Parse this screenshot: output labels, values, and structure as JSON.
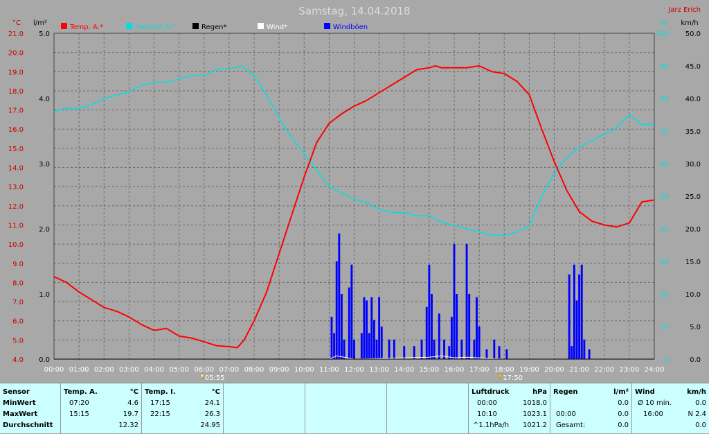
{
  "title": "Samstag, 14.04.2018",
  "author": "Jarz Erich",
  "colors": {
    "temp": "#ff0000",
    "humidity": "#00e0e0",
    "rain": "#000000",
    "wind": "#ffffff",
    "gusts": "#0000ff"
  },
  "axes": {
    "left_temp": {
      "unit": "°C",
      "ticks": [
        "21.0",
        "20.0",
        "19.0",
        "18.0",
        "17.0",
        "16.0",
        "15.0",
        "14.0",
        "13.0",
        "12.0",
        "11.0",
        "10.0",
        "9.0",
        "8.0",
        "7.0",
        "6.0",
        "5.0",
        "4.0"
      ]
    },
    "left_rain": {
      "unit": "l/m²",
      "ticks": [
        "5.0",
        "4.0",
        "3.0",
        "2.0",
        "1.0",
        "0.0"
      ]
    },
    "right_humidity": {
      "unit": "%",
      "ticks": [
        "100",
        "90",
        "80",
        "70",
        "60",
        "50",
        "40",
        "30",
        "20",
        "10",
        "0"
      ]
    },
    "right_wind": {
      "unit": "km/h",
      "ticks": [
        "50.0",
        "45.0",
        "40.0",
        "35.0",
        "30.0",
        "25.0",
        "20.0",
        "15.0",
        "10.0",
        "5.0",
        "0.0"
      ]
    },
    "x": {
      "ticks": [
        "00:00",
        "01:00",
        "02:00",
        "03:00",
        "04:00",
        "05:00",
        "06:00",
        "07:00",
        "08:00",
        "09:00",
        "10:00",
        "11:00",
        "12:00",
        "13:00",
        "14:00",
        "15:00",
        "16:00",
        "17:00",
        "18:00",
        "19:00",
        "20:00",
        "21:00",
        "22:00",
        "23:00",
        "24:00"
      ]
    }
  },
  "sunrise": "05:55",
  "sunset": "17:50",
  "legend": [
    {
      "label": "Temp. A.*",
      "color": "#ff0000"
    },
    {
      "label": "Feuchte A.*",
      "color": "#00e0e0"
    },
    {
      "label": "Regen*",
      "color": "#000000"
    },
    {
      "label": "Wind*",
      "color": "#ffffff"
    },
    {
      "label": "Windböen",
      "color": "#0000ff"
    }
  ],
  "chart_data": {
    "type": "line",
    "x_unit": "hour",
    "ylim_temp": [
      4,
      21
    ],
    "ylim_rain": [
      0,
      5
    ],
    "ylim_humidity": [
      0,
      100
    ],
    "ylim_wind": [
      0,
      50
    ],
    "grid": true,
    "series": [
      {
        "name": "Temp. A.*",
        "axis": "temp",
        "points": [
          [
            0,
            8.3
          ],
          [
            0.5,
            8.0
          ],
          [
            1,
            7.5
          ],
          [
            1.5,
            7.1
          ],
          [
            2,
            6.7
          ],
          [
            2.5,
            6.5
          ],
          [
            3,
            6.2
          ],
          [
            3.5,
            5.8
          ],
          [
            4,
            5.5
          ],
          [
            4.5,
            5.6
          ],
          [
            5,
            5.2
          ],
          [
            5.5,
            5.1
          ],
          [
            6,
            4.9
          ],
          [
            6.5,
            4.7
          ],
          [
            7,
            4.65
          ],
          [
            7.33,
            4.6
          ],
          [
            7.6,
            5.0
          ],
          [
            8,
            6.0
          ],
          [
            8.5,
            7.5
          ],
          [
            9,
            9.5
          ],
          [
            9.5,
            11.5
          ],
          [
            10,
            13.5
          ],
          [
            10.5,
            15.3
          ],
          [
            11,
            16.3
          ],
          [
            11.5,
            16.8
          ],
          [
            12,
            17.2
          ],
          [
            12.5,
            17.5
          ],
          [
            13,
            17.9
          ],
          [
            13.5,
            18.3
          ],
          [
            14,
            18.7
          ],
          [
            14.5,
            19.1
          ],
          [
            15,
            19.2
          ],
          [
            15.25,
            19.3
          ],
          [
            15.5,
            19.2
          ],
          [
            16,
            19.2
          ],
          [
            16.5,
            19.2
          ],
          [
            17,
            19.3
          ],
          [
            17.5,
            19.0
          ],
          [
            18,
            18.9
          ],
          [
            18.5,
            18.5
          ],
          [
            19,
            17.8
          ],
          [
            19.5,
            16.0
          ],
          [
            20,
            14.3
          ],
          [
            20.5,
            12.8
          ],
          [
            21,
            11.7
          ],
          [
            21.5,
            11.2
          ],
          [
            22,
            11.0
          ],
          [
            22.5,
            10.9
          ],
          [
            23,
            11.1
          ],
          [
            23.5,
            12.2
          ],
          [
            24,
            12.3
          ]
        ]
      },
      {
        "name": "Feuchte A.*",
        "axis": "humidity",
        "points": [
          [
            0,
            76
          ],
          [
            0.5,
            77
          ],
          [
            1,
            77
          ],
          [
            1.5,
            78
          ],
          [
            2,
            80
          ],
          [
            2.5,
            81
          ],
          [
            3,
            82
          ],
          [
            3.5,
            84
          ],
          [
            4,
            85
          ],
          [
            4.5,
            85
          ],
          [
            5,
            86
          ],
          [
            5.5,
            87
          ],
          [
            6,
            87
          ],
          [
            6.5,
            89
          ],
          [
            7,
            89
          ],
          [
            7.5,
            90
          ],
          [
            8,
            87
          ],
          [
            8.5,
            81
          ],
          [
            9,
            74
          ],
          [
            9.5,
            68
          ],
          [
            10,
            63
          ],
          [
            10.5,
            58
          ],
          [
            11,
            53
          ],
          [
            11.5,
            51
          ],
          [
            12,
            49
          ],
          [
            12.5,
            48
          ],
          [
            13,
            46
          ],
          [
            13.5,
            45
          ],
          [
            14,
            45
          ],
          [
            14.5,
            44
          ],
          [
            15,
            44
          ],
          [
            15.5,
            42
          ],
          [
            16,
            41
          ],
          [
            16.5,
            40
          ],
          [
            17,
            39
          ],
          [
            17.5,
            38
          ],
          [
            18,
            38
          ],
          [
            18.5,
            39
          ],
          [
            19,
            41
          ],
          [
            19.5,
            50
          ],
          [
            20,
            57
          ],
          [
            20.5,
            62
          ],
          [
            21,
            65
          ],
          [
            21.5,
            67
          ],
          [
            22,
            69
          ],
          [
            22.5,
            71
          ],
          [
            23,
            75
          ],
          [
            23.5,
            72
          ],
          [
            24,
            72
          ]
        ]
      },
      {
        "name": "Regen*",
        "axis": "rain",
        "points": [
          [
            0,
            0
          ],
          [
            24,
            0
          ]
        ]
      },
      {
        "name": "Wind*",
        "axis": "wind",
        "points": [
          [
            0,
            0
          ],
          [
            11,
            0
          ],
          [
            11.3,
            0.5
          ],
          [
            11.6,
            0.3
          ],
          [
            12,
            0
          ],
          [
            15,
            0.3
          ],
          [
            15.5,
            0.5
          ],
          [
            16,
            0.2
          ],
          [
            16.5,
            0.3
          ],
          [
            18,
            0
          ],
          [
            24,
            0
          ]
        ]
      },
      {
        "name": "Windböen",
        "axis": "wind",
        "bars": [
          [
            11.1,
            6.5
          ],
          [
            11.2,
            4.0
          ],
          [
            11.3,
            15.0
          ],
          [
            11.4,
            19.3
          ],
          [
            11.5,
            10.0
          ],
          [
            11.6,
            3.0
          ],
          [
            11.8,
            11.0
          ],
          [
            11.9,
            14.5
          ],
          [
            12.0,
            3.0
          ],
          [
            12.3,
            4.0
          ],
          [
            12.4,
            9.5
          ],
          [
            12.5,
            9.0
          ],
          [
            12.6,
            4.0
          ],
          [
            12.7,
            9.5
          ],
          [
            12.8,
            6.0
          ],
          [
            12.9,
            3.0
          ],
          [
            13.0,
            9.5
          ],
          [
            13.1,
            5.0
          ],
          [
            13.4,
            3.0
          ],
          [
            13.6,
            3.0
          ],
          [
            14.0,
            2.0
          ],
          [
            14.4,
            2.0
          ],
          [
            14.7,
            3.0
          ],
          [
            14.9,
            8.0
          ],
          [
            15.0,
            14.5
          ],
          [
            15.1,
            10.0
          ],
          [
            15.2,
            3.0
          ],
          [
            15.4,
            7.0
          ],
          [
            15.6,
            3.0
          ],
          [
            15.8,
            2.0
          ],
          [
            15.9,
            6.5
          ],
          [
            16.0,
            17.7
          ],
          [
            16.1,
            10.0
          ],
          [
            16.3,
            3.0
          ],
          [
            16.5,
            17.7
          ],
          [
            16.6,
            10.0
          ],
          [
            16.8,
            3.0
          ],
          [
            16.9,
            9.5
          ],
          [
            17.0,
            5.0
          ],
          [
            17.3,
            1.5
          ],
          [
            17.6,
            3.0
          ],
          [
            17.8,
            2.0
          ],
          [
            18.1,
            1.5
          ],
          [
            20.6,
            13.0
          ],
          [
            20.7,
            2.0
          ],
          [
            20.8,
            14.5
          ],
          [
            20.9,
            9.0
          ],
          [
            21.0,
            13.0
          ],
          [
            21.1,
            14.5
          ],
          [
            21.2,
            3.0
          ],
          [
            21.4,
            1.5
          ]
        ]
      }
    ]
  },
  "table": {
    "sensor": {
      "header": "Sensor",
      "rows": [
        "MinWert",
        "MaxWert",
        "Durchschnitt"
      ]
    },
    "temp_a": {
      "header": "Temp. A.",
      "unit": "°C",
      "times": [
        "07:20",
        "15:15",
        ""
      ],
      "values": [
        "4.6",
        "19.7",
        "12.32"
      ]
    },
    "temp_i": {
      "header": "Temp. I.",
      "unit": "°C",
      "times": [
        "17:15",
        "22:15",
        ""
      ],
      "values": [
        "24.1",
        "26.3",
        "24.95"
      ]
    },
    "pressure": {
      "header": "Luftdruck",
      "unit": "hPa",
      "times": [
        "00:00",
        "10:10",
        "^1.1hPa/h"
      ],
      "values": [
        "1018.0",
        "1023.1",
        "1021.2"
      ]
    },
    "rain": {
      "header": "Regen",
      "unit": "l/m²",
      "times": [
        "00:00",
        "",
        "Gesamt:"
      ],
      "values": [
        "0.0",
        "0.0",
        "0.0"
      ]
    },
    "wind": {
      "header": "Wind",
      "unit": "km/h",
      "labels": [
        "Ø 10 min.",
        "16:00",
        ""
      ],
      "values": [
        "0.0",
        "N 2.4",
        "0.0"
      ]
    }
  }
}
